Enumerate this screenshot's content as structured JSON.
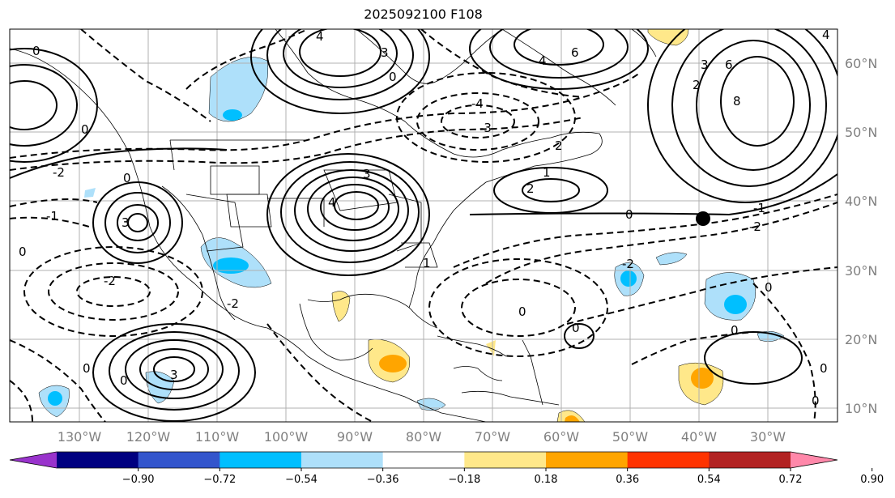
{
  "title": "2025092100 F108",
  "lon_ticks": [
    "130°W",
    "120°W",
    "110°W",
    "100°W",
    "90°W",
    "80°W",
    "70°W",
    "60°W",
    "50°W",
    "40°W",
    "30°W"
  ],
  "lat_ticks": [
    "60°N",
    "50°N",
    "40°N",
    "30°N",
    "20°N",
    "10°N"
  ],
  "contour_labels": [
    "0",
    "1",
    "2",
    "3",
    "4",
    "6",
    "8",
    "-1",
    "-2",
    "-3",
    "-4"
  ],
  "colorbar": {
    "colors": [
      "#9933cc",
      "#000080",
      "#3355cc",
      "#00bfff",
      "#aee0fa",
      "#ffffff",
      "#ffe88a",
      "#ffa500",
      "#ff3300",
      "#b22222",
      "#ff88aa"
    ],
    "labels": [
      "−0.90",
      "−0.72",
      "−0.54",
      "−0.36",
      "−0.18",
      "0.18",
      "0.36",
      "0.54",
      "0.72",
      "0.90"
    ]
  },
  "marker": {
    "lon": "40°W",
    "lat": "37°N",
    "color": "#000000"
  }
}
